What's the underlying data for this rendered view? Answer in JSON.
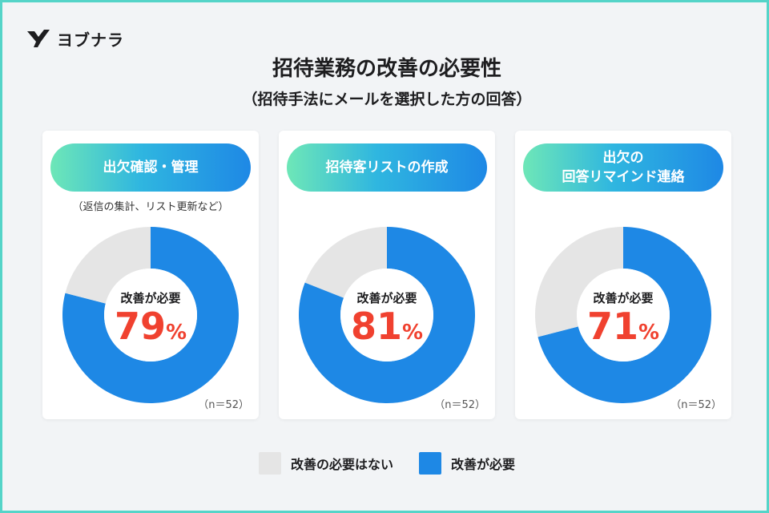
{
  "brand": {
    "name": "ヨブナラ",
    "logo_icon": "bird-logo-icon"
  },
  "title": "招待業務の改善の必要性",
  "subtitle": "（招待手法にメールを選択した方の回答）",
  "colors": {
    "need": "#1e88e5",
    "no_need": "#e5e5e5",
    "accent": "#f0412f",
    "border": "#55d4c8"
  },
  "chart_data": [
    {
      "type": "pie",
      "title": "出欠確認・管理",
      "note": "（返信の集計、リスト更新など）",
      "center_label": "改善が必要",
      "center_value": "79",
      "center_unit": "%",
      "categories": [
        "改善が必要",
        "改善の必要はない"
      ],
      "values": [
        79,
        21
      ],
      "n_label": "（n＝52）"
    },
    {
      "type": "pie",
      "title": "招待客リストの作成",
      "note": "",
      "center_label": "改善が必要",
      "center_value": "81",
      "center_unit": "%",
      "categories": [
        "改善が必要",
        "改善の必要はない"
      ],
      "values": [
        81,
        19
      ],
      "n_label": "（n＝52）"
    },
    {
      "type": "pie",
      "title": "出欠の\n回答リマインド連絡",
      "note": "",
      "center_label": "改善が必要",
      "center_value": "71",
      "center_unit": "%",
      "categories": [
        "改善が必要",
        "改善の必要はない"
      ],
      "values": [
        71,
        29
      ],
      "n_label": "（n＝52）"
    }
  ],
  "legend": [
    {
      "label": "改善の必要はない",
      "color": "#e5e5e5"
    },
    {
      "label": "改善が必要",
      "color": "#1e88e5"
    }
  ]
}
